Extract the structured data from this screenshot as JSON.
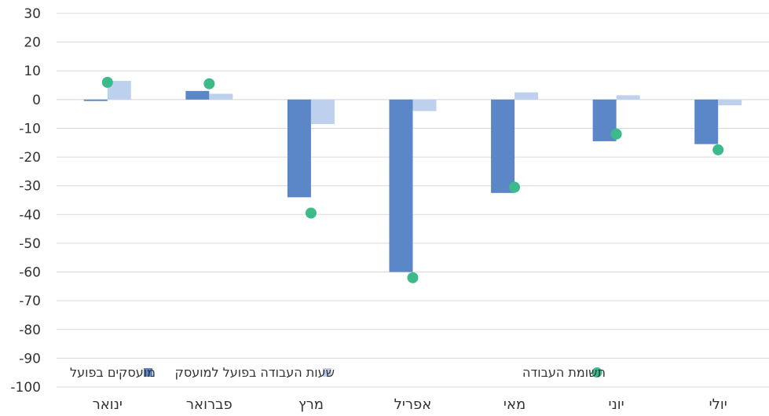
{
  "chart_data": {
    "type": "bar",
    "categories": [
      "ינואר",
      "פברואר",
      "מרץ",
      "אפריל",
      "מאי",
      "יוני",
      "יולי"
    ],
    "series": [
      {
        "name": "מועסקים בפועל",
        "kind": "bar",
        "color": "#5b86c8",
        "values": [
          -0.5,
          3,
          -34,
          -60,
          -32.5,
          -14.5,
          -15.5
        ]
      },
      {
        "name": "שעות העבודה בפועל למועסק",
        "kind": "bar",
        "color": "#bdd1ee",
        "values": [
          6.5,
          2,
          -8.5,
          -4,
          2.5,
          1.5,
          -2
        ]
      },
      {
        "name": "תשומת העבודה",
        "kind": "scatter",
        "color": "#3dba8a",
        "values": [
          6,
          5.5,
          -39.5,
          -62,
          -30.5,
          -12,
          -17.5
        ]
      }
    ],
    "ylim": [
      -100,
      30
    ],
    "yticks": [
      30,
      20,
      10,
      0,
      -10,
      -20,
      -30,
      -40,
      -50,
      -60,
      -70,
      -80,
      -90,
      -100
    ],
    "grid": true,
    "legend": "bottom"
  }
}
